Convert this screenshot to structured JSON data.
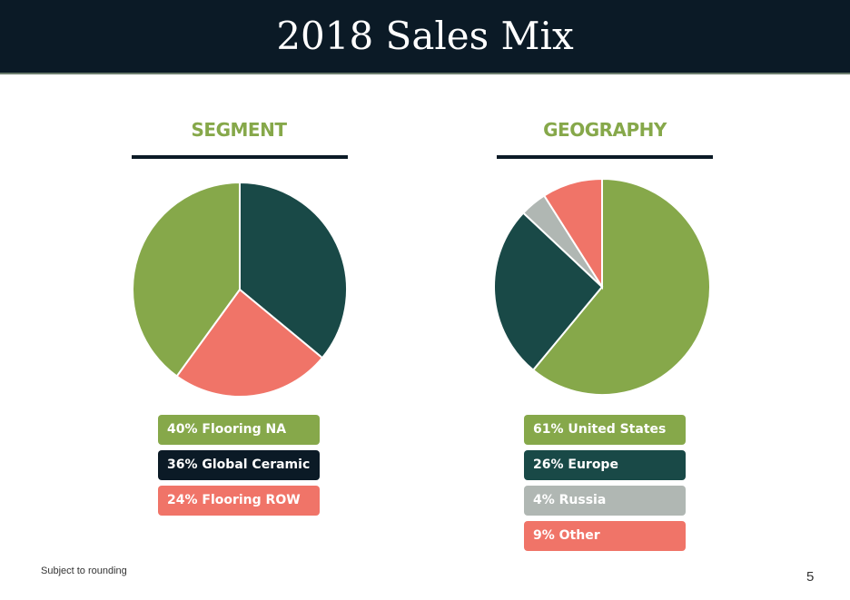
{
  "header": {
    "title": "2018 Sales Mix"
  },
  "colors": {
    "green": "#86a84a",
    "dark_teal": "#194947",
    "salmon": "#f07468",
    "gray": "#b0b7b3",
    "navy": "#0b1a26"
  },
  "chart_data": [
    {
      "type": "pie",
      "title": "SEGMENT",
      "categories": [
        "Flooring NA",
        "Global Ceramic",
        "Flooring ROW"
      ],
      "values": [
        40,
        36,
        24
      ],
      "legend": [
        "40% Flooring NA",
        "36% Global Ceramic",
        "24% Flooring ROW"
      ],
      "slice_order": [
        "Global Ceramic",
        "Flooring ROW",
        "Flooring NA"
      ],
      "colors": [
        "#86a84a",
        "#0b1a26",
        "#f07468"
      ],
      "slice_colors": {
        "Flooring NA": "#86a84a",
        "Global Ceramic": "#194947",
        "Flooring ROW": "#f07468"
      },
      "legend_placement": "bottom"
    },
    {
      "type": "pie",
      "title": "GEOGRAPHY",
      "categories": [
        "United States",
        "Europe",
        "Russia",
        "Other"
      ],
      "values": [
        61,
        26,
        4,
        9
      ],
      "legend": [
        "61% United States",
        "26% Europe",
        "4% Russia",
        "9% Other"
      ],
      "slice_order": [
        "United States",
        "Europe",
        "Russia",
        "Other"
      ],
      "colors": [
        "#86a84a",
        "#194947",
        "#b0b7b3",
        "#f07468"
      ],
      "slice_colors": {
        "United States": "#86a84a",
        "Europe": "#194947",
        "Russia": "#b0b7b3",
        "Other": "#f07468"
      },
      "legend_placement": "bottom"
    }
  ],
  "footer": {
    "note": "Subject to rounding",
    "page_number": "5"
  }
}
